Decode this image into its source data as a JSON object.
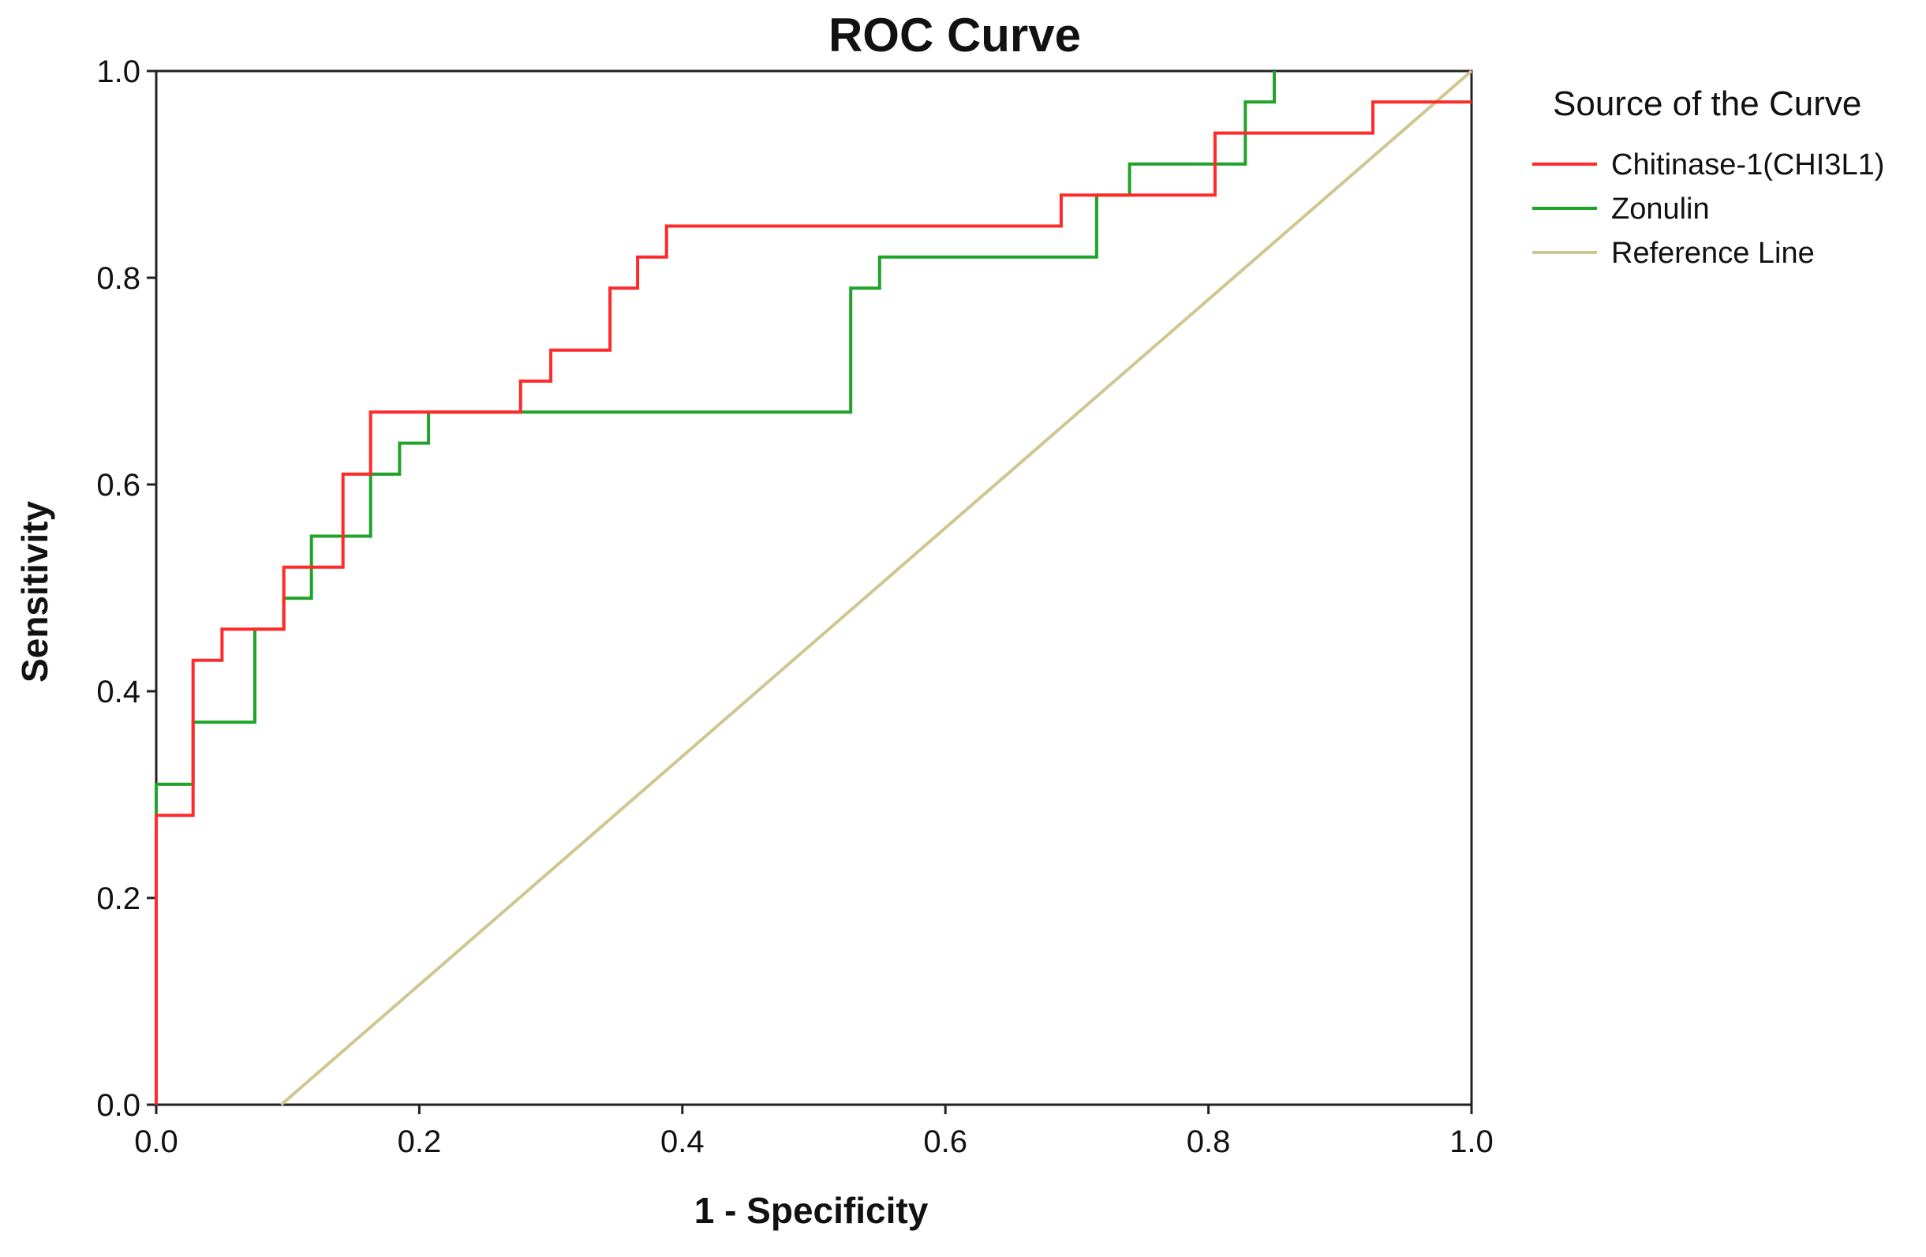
{
  "chart_data": {
    "type": "line",
    "title": "ROC Curve",
    "xlabel": "1 - Specificity",
    "ylabel": "Sensitivity",
    "xlim": [
      0,
      1
    ],
    "ylim": [
      0,
      1
    ],
    "x_ticks": [
      "0.0",
      "0.2",
      "0.4",
      "0.6",
      "0.8",
      "1.0"
    ],
    "y_ticks": [
      "0.0",
      "0.2",
      "0.4",
      "0.6",
      "0.8",
      "1.0"
    ],
    "grid": false,
    "legend": {
      "title": "Source of the Curve",
      "position": "right"
    },
    "series": [
      {
        "name": "Chitinase-1(CHI3L1)",
        "color": "#ff2a2a",
        "x": [
          0.0,
          0.0,
          0.028,
          0.028,
          0.05,
          0.05,
          0.075,
          0.075,
          0.097,
          0.097,
          0.142,
          0.142,
          0.163,
          0.163,
          0.205,
          0.205,
          0.277,
          0.277,
          0.3,
          0.3,
          0.345,
          0.345,
          0.366,
          0.366,
          0.388,
          0.388,
          0.688,
          0.688,
          0.72,
          0.72,
          0.805,
          0.805,
          0.925,
          0.925,
          1.0
        ],
        "y": [
          0.0,
          0.28,
          0.28,
          0.43,
          0.43,
          0.46,
          0.46,
          0.46,
          0.46,
          0.52,
          0.52,
          0.61,
          0.61,
          0.67,
          0.67,
          0.67,
          0.67,
          0.7,
          0.7,
          0.73,
          0.73,
          0.79,
          0.79,
          0.82,
          0.82,
          0.85,
          0.85,
          0.88,
          0.88,
          0.88,
          0.88,
          0.94,
          0.94,
          0.97,
          0.97
        ]
      },
      {
        "name": "Zonulin",
        "color": "#1fa32a",
        "x": [
          0.0,
          0.0,
          0.028,
          0.028,
          0.075,
          0.075,
          0.097,
          0.097,
          0.118,
          0.118,
          0.163,
          0.163,
          0.185,
          0.185,
          0.207,
          0.207,
          0.528,
          0.528,
          0.55,
          0.55,
          0.715,
          0.715,
          0.74,
          0.74,
          0.828,
          0.828,
          0.85,
          0.85
        ],
        "y": [
          0.0,
          0.31,
          0.31,
          0.37,
          0.37,
          0.46,
          0.46,
          0.49,
          0.49,
          0.55,
          0.55,
          0.61,
          0.61,
          0.64,
          0.64,
          0.67,
          0.67,
          0.79,
          0.79,
          0.82,
          0.82,
          0.88,
          0.88,
          0.91,
          0.91,
          0.97,
          0.97,
          1.0
        ]
      },
      {
        "name": "Reference Line",
        "color": "#cfc690",
        "x": [
          0.095,
          1.0
        ],
        "y": [
          0.0,
          1.0
        ]
      }
    ]
  }
}
